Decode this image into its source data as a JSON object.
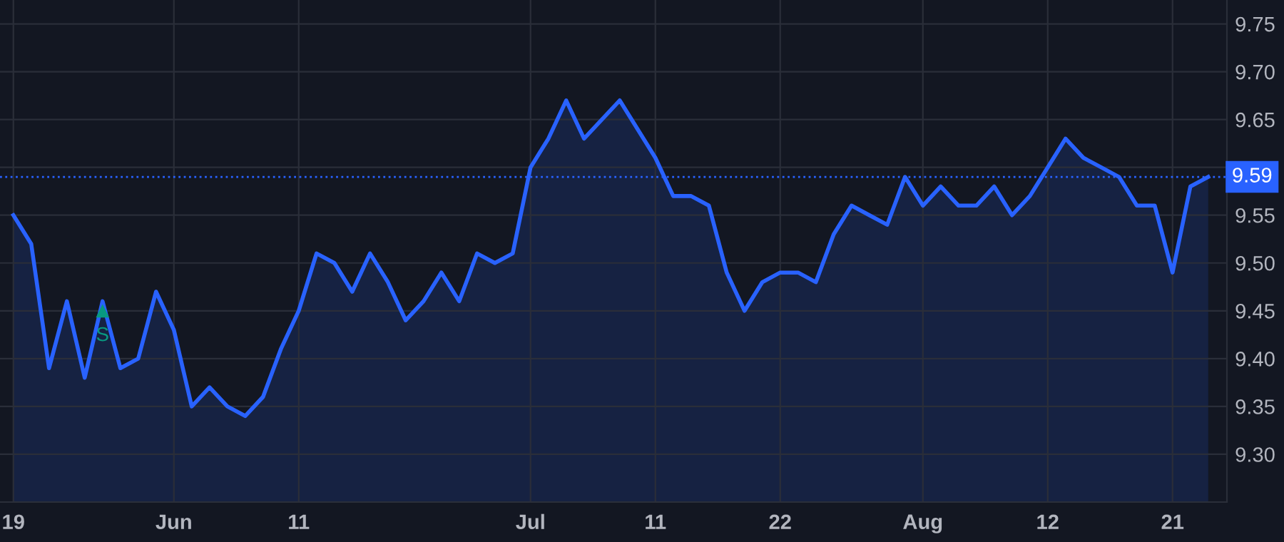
{
  "chart_data": {
    "type": "area",
    "categories": [
      "19",
      null,
      null,
      null,
      null,
      null,
      null,
      null,
      null,
      "Jun",
      null,
      null,
      null,
      null,
      null,
      null,
      "11",
      null,
      null,
      null,
      null,
      null,
      null,
      null,
      null,
      null,
      null,
      null,
      null,
      "Jul",
      null,
      null,
      null,
      null,
      null,
      null,
      "11",
      null,
      null,
      null,
      null,
      null,
      null,
      "22",
      null,
      null,
      null,
      null,
      null,
      null,
      null,
      "Aug",
      null,
      null,
      null,
      null,
      null,
      null,
      "12",
      null,
      null,
      null,
      null,
      null,
      null,
      "21",
      null,
      null
    ],
    "series": [
      {
        "color": "#2962ff",
        "values": [
          9.55,
          9.52,
          9.39,
          9.46,
          9.38,
          9.46,
          9.39,
          9.4,
          9.47,
          9.43,
          9.35,
          9.37,
          9.35,
          9.34,
          9.36,
          9.41,
          9.45,
          9.51,
          9.5,
          9.47,
          9.51,
          9.48,
          9.44,
          9.46,
          9.49,
          9.46,
          9.51,
          9.5,
          9.51,
          9.6,
          9.63,
          9.67,
          9.63,
          9.65,
          9.67,
          9.64,
          9.61,
          9.57,
          9.57,
          9.56,
          9.49,
          9.45,
          9.48,
          9.49,
          9.49,
          9.48,
          9.53,
          9.56,
          9.55,
          9.54,
          9.59,
          9.56,
          9.58,
          9.56,
          9.56,
          9.58,
          9.55,
          9.57,
          9.6,
          9.63,
          9.61,
          9.6,
          9.59,
          9.56,
          9.56,
          9.49,
          9.58,
          9.59
        ]
      },
      {
        "type": "scatter",
        "color": "#089981",
        "marker": "triangle",
        "values": [
          null,
          null,
          null,
          null,
          null,
          9.45,
          null,
          null,
          null,
          null,
          null,
          null,
          null,
          null,
          null,
          null,
          null,
          null,
          null,
          null,
          null,
          null,
          null,
          null,
          null,
          null,
          null,
          null,
          null,
          null,
          null,
          null,
          null,
          null,
          null,
          null,
          null,
          null,
          null,
          null,
          null,
          null,
          null,
          null,
          null,
          null,
          null,
          null,
          null,
          null,
          null,
          null,
          null,
          null,
          null,
          null,
          null,
          null,
          null,
          null,
          null,
          null,
          null,
          null,
          null,
          null,
          null,
          null
        ]
      }
    ],
    "annotations": [
      "S"
    ],
    "ylim": [
      9.25,
      9.775
    ],
    "yticks": [
      {
        "value": 9.3,
        "label": "9.30"
      },
      9.35,
      {
        "value": 9.4,
        "label": "9.40"
      },
      9.45,
      {
        "value": 9.5,
        "label": "9.50"
      },
      9.55,
      {
        "value": 9.6,
        "label": null
      },
      9.65,
      {
        "value": 9.7,
        "label": "9.70"
      },
      9.75
    ],
    "ref_lines": [
      {
        "axis": "y",
        "value": 9.59,
        "label": "9.59",
        "color": "#2962ff",
        "line_style": "dotted"
      }
    ],
    "grid": true
  }
}
